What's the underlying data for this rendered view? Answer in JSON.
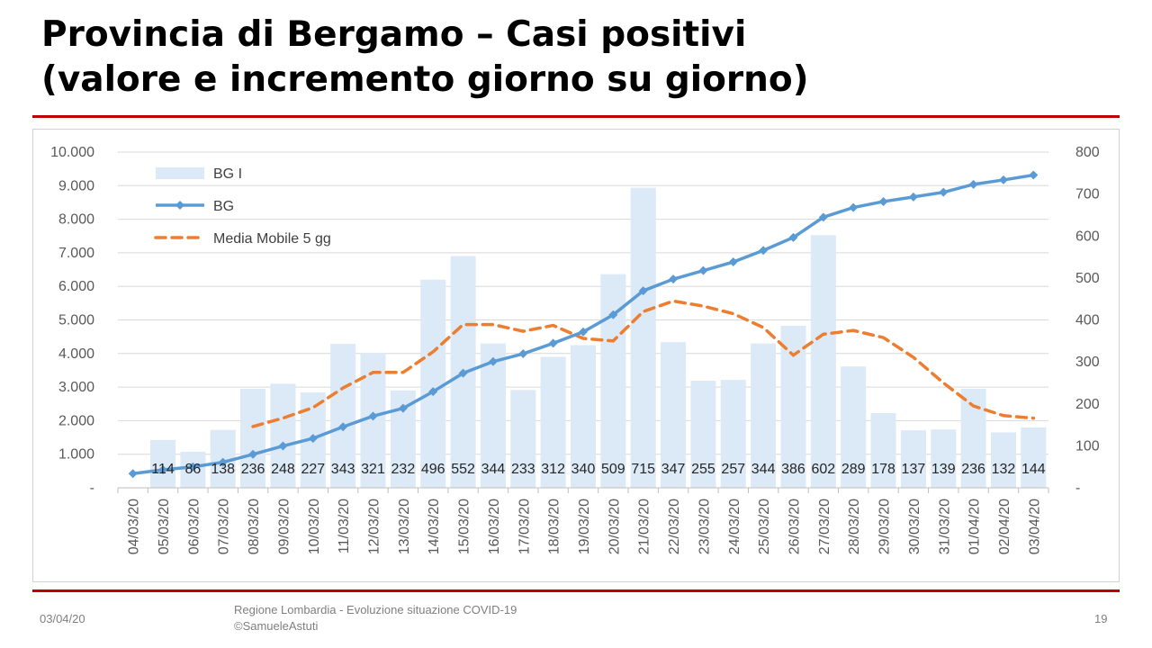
{
  "slide": {
    "title_line1": "Provincia di Bergamo – Casi positivi",
    "title_line2": "(valore e incremento giorno su giorno)",
    "footer_date": "03/04/20",
    "footer_source_line1": "Regione Lombardia - Evoluzione situazione COVID-19",
    "footer_source_line2": "©SamueleAstuti",
    "page_number": "19"
  },
  "chart_data": {
    "type": "bar",
    "categories": [
      "04/03/20",
      "05/03/20",
      "06/03/20",
      "07/03/20",
      "08/03/20",
      "09/03/20",
      "10/03/20",
      "11/03/20",
      "12/03/20",
      "13/03/20",
      "14/03/20",
      "15/03/20",
      "16/03/20",
      "17/03/20",
      "18/03/20",
      "19/03/20",
      "20/03/20",
      "21/03/20",
      "22/03/20",
      "23/03/20",
      "24/03/20",
      "25/03/20",
      "26/03/20",
      "27/03/20",
      "28/03/20",
      "29/03/20",
      "30/03/20",
      "31/03/20",
      "01/04/20",
      "02/04/20",
      "03/04/20"
    ],
    "left_axis": {
      "ticks": [
        "-",
        "1.000",
        "2.000",
        "3.000",
        "4.000",
        "5.000",
        "6.000",
        "7.000",
        "8.000",
        "9.000",
        "10.000"
      ],
      "ylim": [
        0,
        10000
      ]
    },
    "right_axis": {
      "ticks": [
        "-",
        "100",
        "200",
        "300",
        "400",
        "500",
        "600",
        "700",
        "800"
      ],
      "ylim": [
        0,
        800
      ]
    },
    "series": [
      {
        "name": "BG I",
        "type": "bar",
        "axis": "right",
        "color": "#dce9f6",
        "values": [
          null,
          114,
          86,
          138,
          236,
          248,
          227,
          343,
          321,
          232,
          496,
          552,
          344,
          233,
          312,
          340,
          509,
          715,
          347,
          255,
          257,
          344,
          386,
          602,
          289,
          178,
          137,
          139,
          236,
          132,
          144
        ]
      },
      {
        "name": "BG",
        "type": "line",
        "axis": "left",
        "color": "#5b9bd5",
        "values": [
          423,
          537,
          623,
          761,
          997,
          1245,
          1472,
          1815,
          2136,
          2368,
          2864,
          3416,
          3760,
          3993,
          4305,
          4645,
          5154,
          5869,
          6216,
          6471,
          6728,
          7072,
          7458,
          8060,
          8349,
          8527,
          8664,
          8803,
          9039,
          9171,
          9315
        ]
      },
      {
        "name": "Media Mobile 5 gg",
        "type": "line",
        "axis": "right",
        "color": "#ed7d31",
        "dashed": true,
        "values": [
          null,
          null,
          null,
          null,
          146,
          166,
          191,
          238,
          275,
          275,
          324,
          389,
          389,
          373,
          387,
          356,
          350,
          420,
          445,
          433,
          415,
          382,
          316,
          366,
          375,
          358,
          311,
          250,
          195,
          172,
          166
        ]
      }
    ],
    "legend_position": "top-left",
    "grid": true
  }
}
